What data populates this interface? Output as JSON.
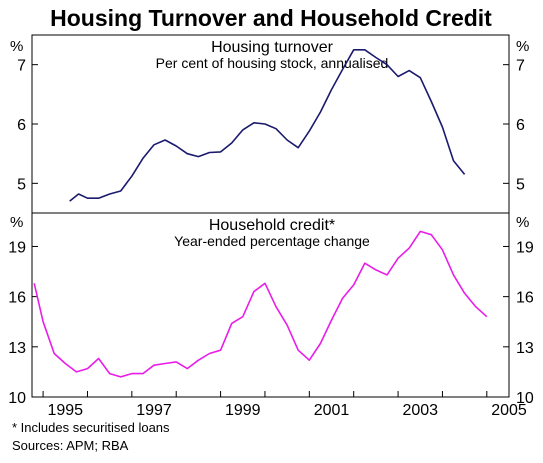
{
  "title": "Housing Turnover and Household Credit",
  "footnote": "*   Includes securitised loans",
  "sources": "Sources: APM; RBA",
  "colors": {
    "turnover": "#1a1a6e",
    "credit": "#e81ee8",
    "grid": "#000000"
  },
  "chart_data": [
    {
      "type": "line",
      "title": "Housing turnover",
      "subtitle": "Per cent of housing stock, annualised",
      "unit": "%",
      "ylim": [
        4.5,
        7.5
      ],
      "yticks": [
        5,
        6,
        7
      ],
      "xlim": [
        1994.75,
        2005.5
      ],
      "grid": false,
      "series": [
        {
          "x": [
            1995.6,
            1995.8,
            1996.0,
            1996.25,
            1996.5,
            1996.75,
            1997.0,
            1997.25,
            1997.5,
            1997.75,
            1998.0,
            1998.25,
            1998.5,
            1998.75,
            1999.0,
            1999.25,
            1999.5,
            1999.75,
            2000.0,
            2000.25,
            2000.5,
            2000.75,
            2001.0,
            2001.25,
            2001.5,
            2001.75,
            2002.0,
            2002.25,
            2002.5,
            2002.75,
            2003.0,
            2003.25,
            2003.5,
            2003.75,
            2004.0,
            2004.25,
            2004.5
          ],
          "values": [
            4.7,
            4.82,
            4.75,
            4.75,
            4.82,
            4.87,
            5.12,
            5.42,
            5.65,
            5.73,
            5.63,
            5.5,
            5.45,
            5.52,
            5.53,
            5.68,
            5.9,
            6.02,
            6.0,
            5.92,
            5.73,
            5.6,
            5.88,
            6.2,
            6.58,
            6.92,
            7.25,
            7.25,
            7.12,
            7.0,
            6.8,
            6.9,
            6.78,
            6.38,
            5.95,
            5.38,
            5.15
          ]
        }
      ]
    },
    {
      "type": "line",
      "title": "Household credit*",
      "subtitle": "Year-ended percentage change",
      "unit": "%",
      "ylim": [
        10,
        21
      ],
      "yticks": [
        10,
        13,
        16,
        19
      ],
      "xlim": [
        1994.75,
        2005.5
      ],
      "xticks": [
        1995,
        1997,
        1999,
        2001,
        2003,
        2005
      ],
      "grid": false,
      "series": [
        {
          "x": [
            1994.8,
            1995.0,
            1995.25,
            1995.5,
            1995.75,
            1996.0,
            1996.25,
            1996.5,
            1996.75,
            1997.0,
            1997.25,
            1997.5,
            1997.75,
            1998.0,
            1998.25,
            1998.5,
            1998.75,
            1999.0,
            1999.25,
            1999.5,
            1999.75,
            2000.0,
            2000.25,
            2000.5,
            2000.75,
            2001.0,
            2001.25,
            2001.5,
            2001.75,
            2002.0,
            2002.25,
            2002.5,
            2002.75,
            2003.0,
            2003.25,
            2003.5,
            2003.75,
            2004.0,
            2004.25,
            2004.5,
            2004.75,
            2005.0
          ],
          "values": [
            16.8,
            14.5,
            12.6,
            12.0,
            11.5,
            11.7,
            12.3,
            11.4,
            11.2,
            11.4,
            11.4,
            11.9,
            12.0,
            12.1,
            11.7,
            12.2,
            12.6,
            12.8,
            14.4,
            14.8,
            16.3,
            16.8,
            15.4,
            14.3,
            12.8,
            12.2,
            13.2,
            14.6,
            15.9,
            16.7,
            18.0,
            17.6,
            17.3,
            18.3,
            18.9,
            19.9,
            19.7,
            18.8,
            17.3,
            16.2,
            15.4,
            14.8
          ]
        }
      ]
    }
  ]
}
